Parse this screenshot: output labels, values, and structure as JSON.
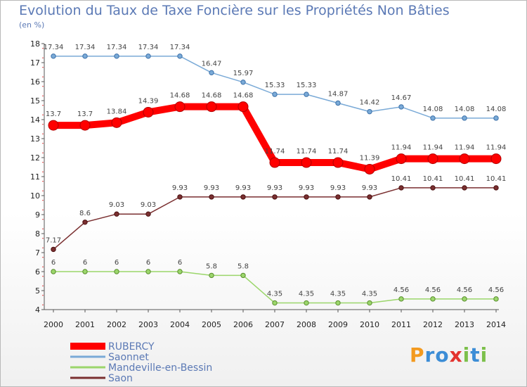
{
  "chart_data": {
    "type": "line",
    "title": "Evolution du Taux de Taxe Foncière sur les Propriétés Non Bâties",
    "subtitle": "(en %)",
    "x": [
      "2000",
      "2001",
      "2002",
      "2003",
      "2004",
      "2005",
      "2006",
      "2007",
      "2008",
      "2009",
      "2010",
      "2011",
      "2012",
      "2013",
      "2014"
    ],
    "y_ticks": [
      4,
      5,
      6,
      7,
      8,
      9,
      10,
      11,
      12,
      13,
      14,
      15,
      16,
      17,
      18
    ],
    "ylim": [
      4,
      18
    ],
    "series": [
      {
        "name": "RUBERCY",
        "color": "#ff0000",
        "values": [
          13.7,
          13.7,
          13.84,
          14.39,
          14.68,
          14.68,
          14.68,
          11.74,
          11.74,
          11.74,
          11.39,
          11.94,
          11.94,
          11.94,
          11.94
        ],
        "labels": [
          "13.7",
          "13.7",
          "13.84",
          "14.39",
          "14.68",
          "14.68",
          "14.68",
          "11.74",
          "11.74",
          "11.74",
          "11.39",
          "11.94",
          "11.94",
          "11.94",
          "11.94"
        ]
      },
      {
        "name": "Saonnet",
        "color": "#7aaad7",
        "values": [
          17.34,
          17.34,
          17.34,
          17.34,
          17.34,
          16.47,
          15.97,
          15.33,
          15.33,
          14.87,
          14.42,
          14.67,
          14.08,
          14.08,
          14.08
        ],
        "labels": [
          "17.34",
          "17.34",
          "17.34",
          "17.34",
          "17.34",
          "16.47",
          "15.97",
          "15.33",
          "15.33",
          "14.87",
          "14.42",
          "14.67",
          "14.08",
          "14.08",
          "14.08"
        ]
      },
      {
        "name": "Mandeville-en-Bessin",
        "color": "#9bd66b",
        "values": [
          6,
          6,
          6,
          6,
          6,
          5.8,
          5.8,
          4.35,
          4.35,
          4.35,
          4.35,
          4.56,
          4.56,
          4.56,
          4.56
        ],
        "labels": [
          "6",
          "6",
          "6",
          "6",
          "6",
          "5.8",
          "5.8",
          "4.35",
          "4.35",
          "4.35",
          "4.35",
          "4.56",
          "4.56",
          "4.56",
          "4.56"
        ]
      },
      {
        "name": "Saon",
        "color": "#7a2f30",
        "values": [
          7.17,
          8.6,
          9.03,
          9.03,
          9.93,
          9.93,
          9.93,
          9.93,
          9.93,
          9.93,
          9.93,
          10.41,
          10.41,
          10.41,
          10.41
        ],
        "labels": [
          "7.17",
          "8.6",
          "9.03",
          "9.03",
          "9.93",
          "9.93",
          "9.93",
          "9.93",
          "9.93",
          "9.93",
          "9.93",
          "10.41",
          "10.41",
          "10.41",
          "10.41"
        ]
      }
    ],
    "grid": false,
    "legend_position": "bottom-left"
  },
  "logo": {
    "text": "Proxiti"
  }
}
